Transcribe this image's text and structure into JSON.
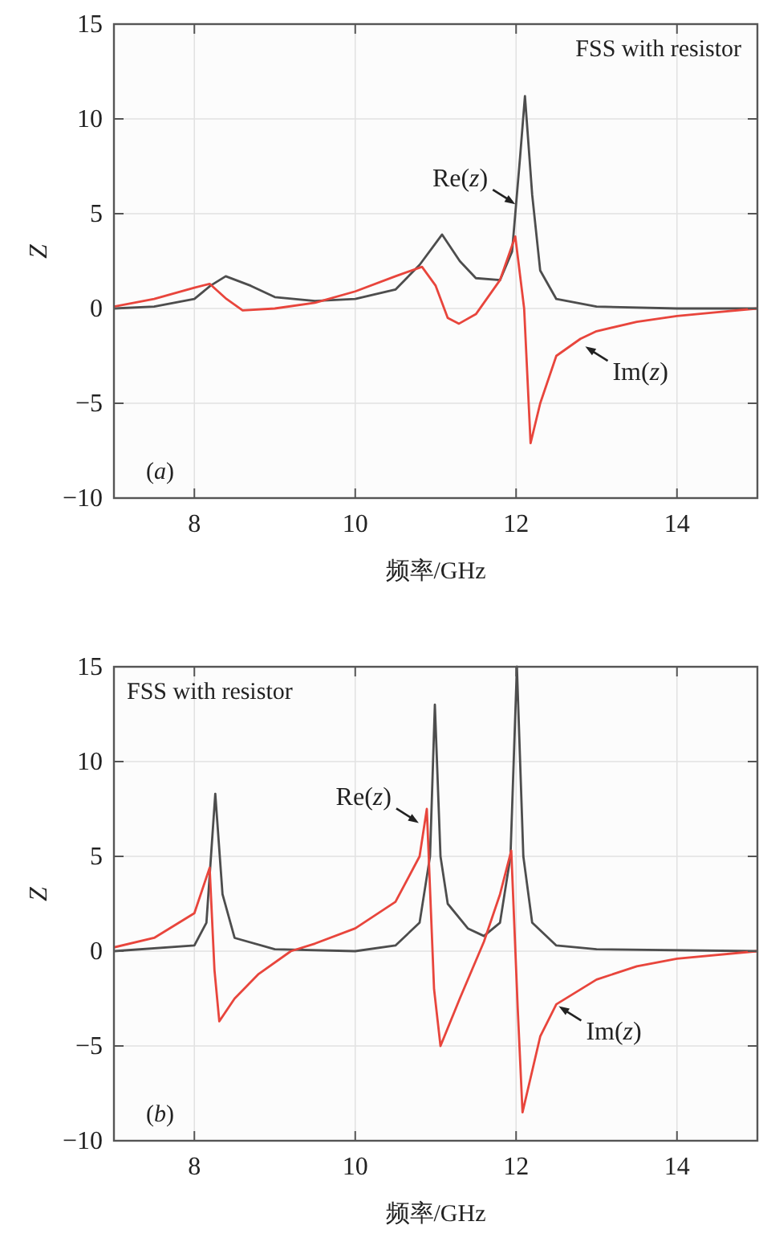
{
  "chart_data": [
    {
      "type": "line",
      "xlabel": "频率/GHz",
      "ylabel": "Z",
      "xlim": [
        7,
        15
      ],
      "ylim": [
        -10,
        15
      ],
      "xticks": [
        8,
        10,
        12,
        14
      ],
      "yticks": [
        -10,
        -5,
        0,
        5,
        10,
        15
      ],
      "grid": true,
      "series": [
        {
          "color": "#4d4d4d",
          "x": [
            7,
            7.5,
            8,
            8.2,
            8.39,
            8.7,
            9,
            9.5,
            10,
            10.5,
            10.8,
            11.08,
            11.3,
            11.5,
            11.8,
            11.95,
            12.05,
            12.11,
            12.2,
            12.3,
            12.5,
            13,
            14,
            15
          ],
          "values": [
            0,
            0.1,
            0.5,
            1.2,
            1.7,
            1.2,
            0.6,
            0.4,
            0.5,
            1.0,
            2.3,
            3.9,
            2.5,
            1.6,
            1.5,
            3,
            8,
            11.2,
            6,
            2,
            0.5,
            0.1,
            0,
            0
          ]
        },
        {
          "color": "#e8453c",
          "x": [
            7,
            7.5,
            8,
            8.19,
            8.4,
            8.6,
            9,
            9.5,
            10,
            10.5,
            10.83,
            11,
            11.15,
            11.29,
            11.5,
            11.8,
            11.99,
            12.1,
            12.18,
            12.3,
            12.5,
            12.8,
            13,
            13.5,
            14,
            14.5,
            15
          ],
          "values": [
            0.1,
            0.5,
            1.1,
            1.3,
            0.5,
            -0.1,
            0,
            0.3,
            0.9,
            1.7,
            2.2,
            1.2,
            -0.5,
            -0.8,
            -0.3,
            1.5,
            3.8,
            0,
            -7.1,
            -5,
            -2.5,
            -1.6,
            -1.2,
            -0.7,
            -0.4,
            -0.2,
            0
          ]
        }
      ],
      "annotations": [
        "FSS with resistor",
        "(a)",
        {
          "text": "Re(z)",
          "x": 11.99,
          "y": 5.5
        },
        {
          "text": "Im(z)",
          "x": 12.86,
          "y": -2.0
        }
      ]
    },
    {
      "type": "line",
      "xlabel": "频率/GHz",
      "ylabel": "Z",
      "xlim": [
        7,
        15
      ],
      "ylim": [
        -10,
        15
      ],
      "xticks": [
        8,
        10,
        12,
        14
      ],
      "yticks": [
        -10,
        -5,
        0,
        5,
        10,
        15
      ],
      "grid": true,
      "series": [
        {
          "color": "#4d4d4d",
          "x": [
            7,
            8,
            8.15,
            8.26,
            8.35,
            8.5,
            9,
            10,
            10.5,
            10.8,
            10.93,
            10.99,
            11.06,
            11.15,
            11.4,
            11.6,
            11.8,
            11.93,
            12.01,
            12.09,
            12.2,
            12.5,
            13,
            15
          ],
          "values": [
            0,
            0.3,
            1.5,
            8.3,
            3,
            0.7,
            0.1,
            0,
            0.3,
            1.5,
            5,
            13,
            5,
            2.5,
            1.2,
            0.8,
            1.5,
            5,
            15,
            5,
            1.5,
            0.3,
            0.1,
            0
          ]
        },
        {
          "color": "#e8453c",
          "x": [
            7,
            7.5,
            8,
            8.19,
            8.25,
            8.31,
            8.5,
            8.8,
            9.2,
            9.5,
            10,
            10.5,
            10.8,
            10.89,
            10.98,
            11.06,
            11.3,
            11.6,
            11.8,
            11.94,
            12.02,
            12.08,
            12.3,
            12.5,
            13,
            13.5,
            14,
            15
          ],
          "values": [
            0.2,
            0.7,
            2,
            4.4,
            -1,
            -3.7,
            -2.5,
            -1.2,
            0,
            0.4,
            1.2,
            2.6,
            5,
            7.5,
            -2,
            -5,
            -2.5,
            0.5,
            3,
            5.3,
            -3,
            -8.5,
            -4.5,
            -2.8,
            -1.5,
            -0.8,
            -0.4,
            0
          ]
        }
      ],
      "annotations": [
        "FSS with resistor",
        "(b)",
        {
          "text": "Re(z)",
          "x": 10.79,
          "y": 6.76
        },
        {
          "text": "Im(z)",
          "x": 12.53,
          "y": -2.9
        }
      ]
    }
  ]
}
